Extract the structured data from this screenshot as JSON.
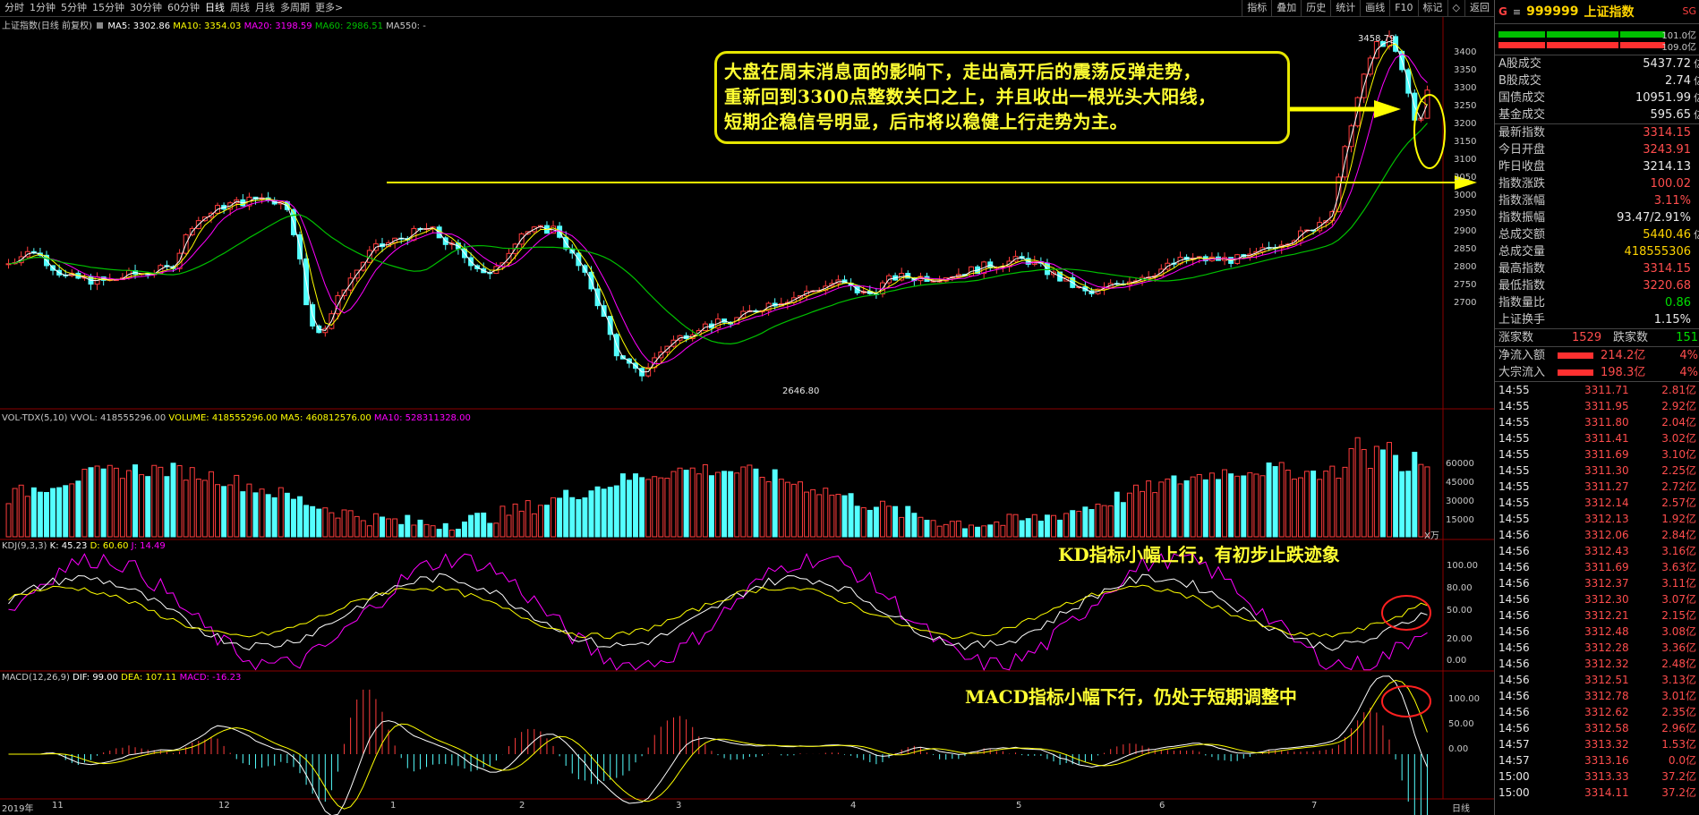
{
  "toolbar": {
    "tabs": [
      "分时",
      "1分钟",
      "5分钟",
      "15分钟",
      "30分钟",
      "60分钟",
      "日线",
      "周线",
      "月线",
      "多周期",
      "更多>"
    ],
    "active_tab": "日线",
    "tools": [
      "指标",
      "叠加",
      "历史",
      "统计",
      "画线",
      "F10",
      "标记",
      "◇",
      "返回"
    ]
  },
  "main_legend": {
    "name": "上证指数(日线 前复权)",
    "ma5": "MA5: 3302.86",
    "ma10": "MA10: 3354.03",
    "ma20": "MA20: 3198.59",
    "ma60": "MA60: 2986.51",
    "ma550": "MA550: -"
  },
  "vol_legend": {
    "name": "VOL-TDX(5,10)",
    "vvol": "VVOL: 418555296.00",
    "volume": "VOLUME: 418555296.00",
    "ma5": "MA5: 460812576.00",
    "ma10": "MA10: 528311328.00",
    "unit": "X万"
  },
  "kdj_legend": {
    "name": "KDJ(9,3,3)",
    "k": "K: 45.23",
    "d": "D: 60.60",
    "j": "J: 14.49"
  },
  "macd_legend": {
    "name": "MACD(12,26,9)",
    "dif": "DIF: 99.00",
    "dea": "DEA: 107.11",
    "macd": "MACD: -16.23"
  },
  "annotations": {
    "main_lines": [
      "大盘在周末消息面的影响下，走出高开后的震荡反弹走势，",
      "重新回到3300点整数关口之上，并且收出一根光头大阳线，",
      "短期企稳信号明显，后市将以稳健上行走势为主。"
    ],
    "kd": "KD指标小幅上行，有初步止跌迹象",
    "macd": "MACD指标小幅下行，仍处于短期调整中",
    "high_label": "3458.79",
    "low_label": "2646.80"
  },
  "price_axis": [
    "3400",
    "3350",
    "3300",
    "3250",
    "3200",
    "3150",
    "3100",
    "3050",
    "3000",
    "2950",
    "2900",
    "2850",
    "2800",
    "2750",
    "2700"
  ],
  "vol_axis": [
    "60000",
    "45000",
    "30000",
    "15000"
  ],
  "kdj_axis": [
    "100.00",
    "80.00",
    "50.00",
    "20.00",
    "0.00"
  ],
  "macd_axis": [
    "100.00",
    "50.00",
    "0.00"
  ],
  "date_axis": [
    "2019年",
    "11",
    "12",
    "1",
    "2",
    "3",
    "4",
    "5",
    "6",
    "7"
  ],
  "period_label": "日线",
  "colors": {
    "up": "#ff3c3c",
    "down": "#54ffff",
    "ma5": "#ffffff",
    "ma10": "#ffff00",
    "ma20": "#ff00ff",
    "ma60": "#00c000",
    "annotation": "#ffff33"
  },
  "quote": {
    "code": "999999",
    "name": "上证指数",
    "flag": "G",
    "tag": "SG",
    "bar_labels": [
      "101.0亿",
      "109.0亿"
    ],
    "rows1": [
      {
        "label": "A股成交",
        "value": "5437.72",
        "unit": "亿",
        "color": "white"
      },
      {
        "label": "B股成交",
        "value": "2.74",
        "unit": "亿",
        "color": "white"
      },
      {
        "label": "国债成交",
        "value": "10951.99",
        "unit": "亿",
        "color": "white"
      },
      {
        "label": "基金成交",
        "value": "595.65",
        "unit": "亿",
        "color": "white"
      }
    ],
    "rows2": [
      {
        "label": "最新指数",
        "value": "3314.15",
        "color": "red"
      },
      {
        "label": "今日开盘",
        "value": "3243.91",
        "color": "red"
      },
      {
        "label": "昨日收盘",
        "value": "3214.13",
        "color": "white"
      },
      {
        "label": "指数涨跌",
        "value": "100.02",
        "color": "red"
      },
      {
        "label": "指数涨幅",
        "value": "3.11%",
        "color": "red"
      },
      {
        "label": "指数振幅",
        "value": "93.47/2.91%",
        "color": "white"
      },
      {
        "label": "总成交额",
        "value": "5440.46",
        "unit": "亿",
        "color": "yellow"
      },
      {
        "label": "总成交量",
        "value": "418555306",
        "color": "yellow"
      },
      {
        "label": "最高指数",
        "value": "3314.15",
        "color": "red"
      },
      {
        "label": "最低指数",
        "value": "3220.68",
        "color": "red"
      },
      {
        "label": "指数量比",
        "value": "0.86",
        "color": "green"
      },
      {
        "label": "上证换手",
        "value": "1.15%",
        "color": "white"
      }
    ],
    "breadth": {
      "up_label": "涨家数",
      "up_value": "1529",
      "down_label": "跌家数",
      "down_value": "151"
    },
    "flows": [
      {
        "label": "净流入额",
        "value": "214.2亿",
        "pct": "4%"
      },
      {
        "label": "大宗流入",
        "value": "198.3亿",
        "pct": "4%"
      }
    ],
    "ticks": [
      {
        "t": "14:55",
        "p": "3311.71",
        "v": "2.81亿"
      },
      {
        "t": "14:55",
        "p": "3311.95",
        "v": "2.92亿"
      },
      {
        "t": "14:55",
        "p": "3311.80",
        "v": "2.04亿"
      },
      {
        "t": "14:55",
        "p": "3311.41",
        "v": "3.02亿"
      },
      {
        "t": "14:55",
        "p": "3311.69",
        "v": "3.10亿"
      },
      {
        "t": "14:55",
        "p": "3311.30",
        "v": "2.25亿"
      },
      {
        "t": "14:55",
        "p": "3311.27",
        "v": "2.72亿"
      },
      {
        "t": "14:55",
        "p": "3312.14",
        "v": "2.57亿"
      },
      {
        "t": "14:55",
        "p": "3312.13",
        "v": "1.92亿"
      },
      {
        "t": "14:56",
        "p": "3312.06",
        "v": "2.84亿"
      },
      {
        "t": "14:56",
        "p": "3312.43",
        "v": "3.16亿"
      },
      {
        "t": "14:56",
        "p": "3311.69",
        "v": "3.63亿"
      },
      {
        "t": "14:56",
        "p": "3312.37",
        "v": "3.11亿"
      },
      {
        "t": "14:56",
        "p": "3312.30",
        "v": "3.07亿"
      },
      {
        "t": "14:56",
        "p": "3312.21",
        "v": "2.15亿"
      },
      {
        "t": "14:56",
        "p": "3312.48",
        "v": "3.08亿"
      },
      {
        "t": "14:56",
        "p": "3312.28",
        "v": "3.36亿"
      },
      {
        "t": "14:56",
        "p": "3312.32",
        "v": "2.48亿"
      },
      {
        "t": "14:56",
        "p": "3312.51",
        "v": "3.13亿"
      },
      {
        "t": "14:56",
        "p": "3312.78",
        "v": "3.01亿"
      },
      {
        "t": "14:56",
        "p": "3312.62",
        "v": "2.35亿"
      },
      {
        "t": "14:56",
        "p": "3312.58",
        "v": "2.96亿"
      },
      {
        "t": "14:57",
        "p": "3313.32",
        "v": "1.53亿"
      },
      {
        "t": "14:57",
        "p": "3313.16",
        "v": "0.0亿"
      },
      {
        "t": "15:00",
        "p": "3313.33",
        "v": "37.2亿"
      },
      {
        "t": "15:00",
        "p": "3314.11",
        "v": "37.2亿"
      }
    ]
  }
}
